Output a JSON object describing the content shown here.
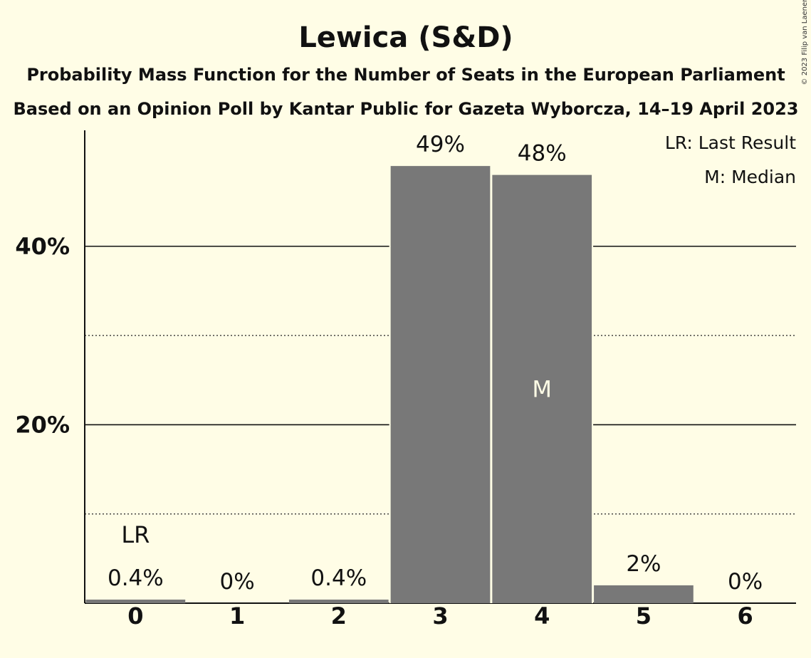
{
  "chart_data": {
    "type": "bar",
    "title": "Lewica (S&D)",
    "subtitles": [
      "Probability Mass Function for the Number of Seats in the European Parliament",
      "Based on an Opinion Poll by Kantar Public for Gazeta Wyborcza, 14–19 April 2023"
    ],
    "categories": [
      "0",
      "1",
      "2",
      "3",
      "4",
      "5",
      "6"
    ],
    "values": [
      0.4,
      0,
      0.4,
      49,
      48,
      2,
      0
    ],
    "value_labels": [
      "0.4%",
      "0%",
      "0.4%",
      "49%",
      "48%",
      "2%",
      "0%"
    ],
    "ylim": [
      0,
      53
    ],
    "yticks": [
      {
        "value": 20,
        "label": "20%"
      },
      {
        "value": 40,
        "label": "40%"
      }
    ],
    "minor_gridlines": [
      10,
      30
    ],
    "last_result_category": "0",
    "last_result_marker": "LR",
    "median_category": "4",
    "median_marker": "M",
    "legend": [
      "LR: Last Result",
      "M: Median"
    ],
    "legend_position": "top-right",
    "bar_color": "#787878",
    "copyright": "© 2023 Filip van Laenen"
  }
}
